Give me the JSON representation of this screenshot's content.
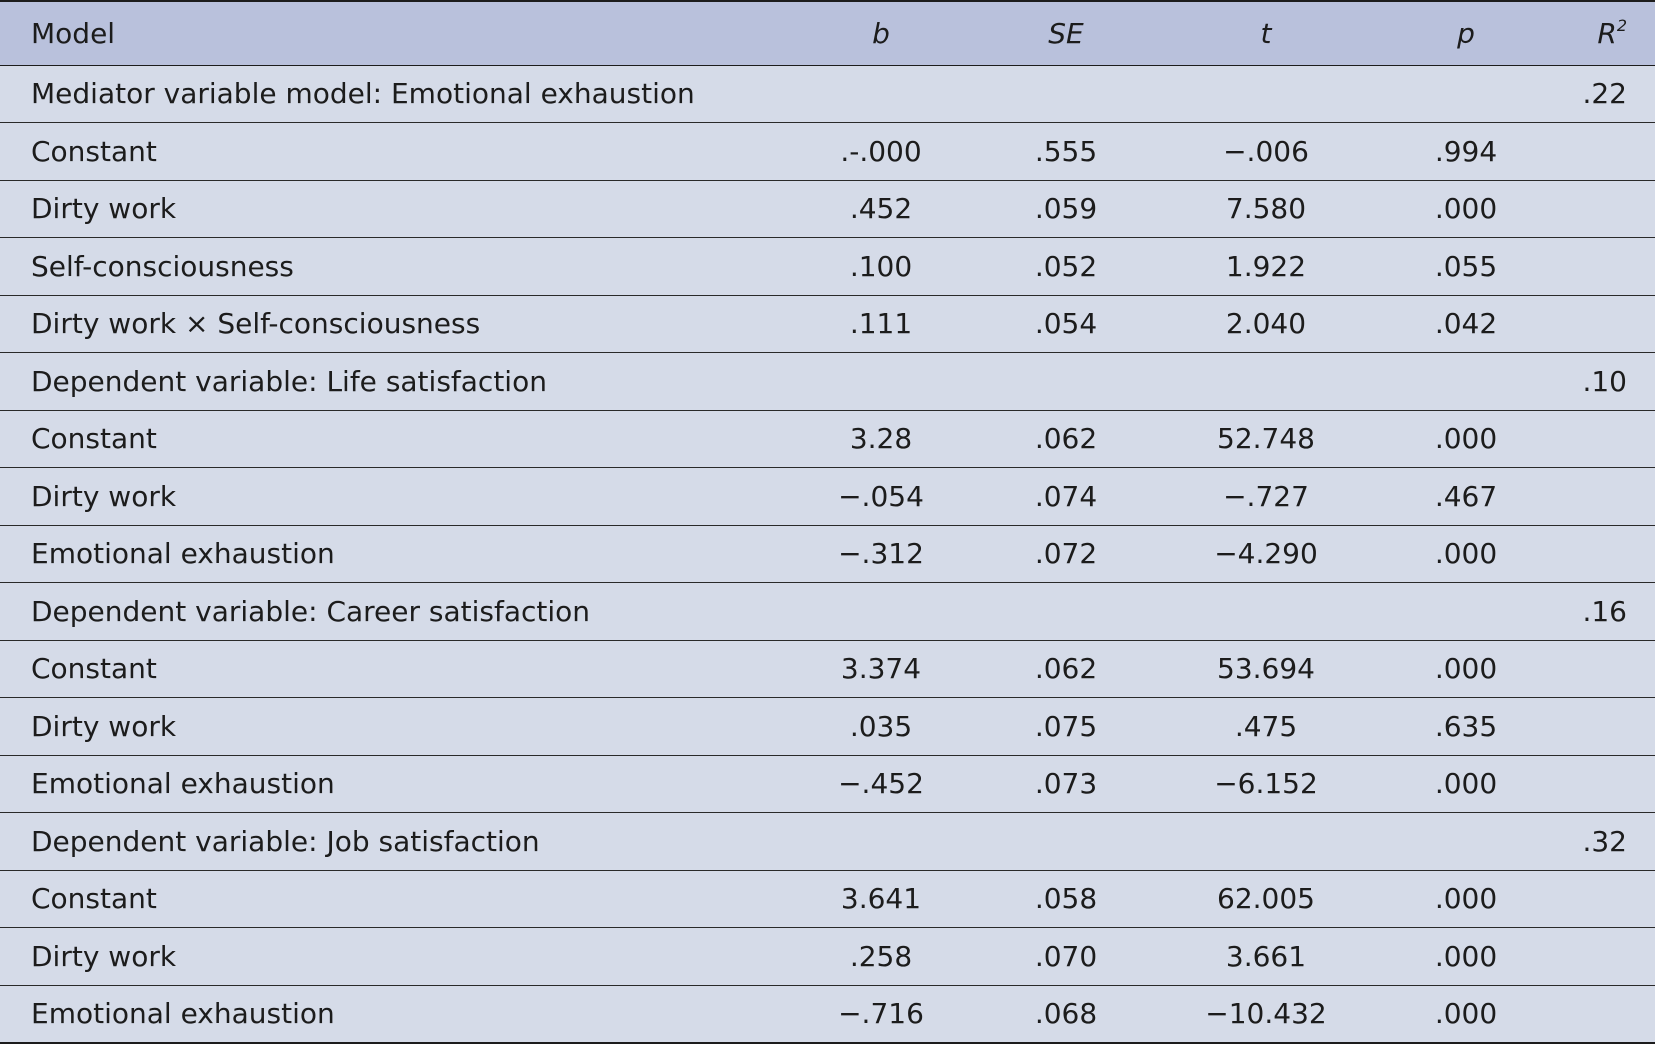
{
  "header": {
    "model": "Model",
    "b": "b",
    "se": "SE",
    "t": "t",
    "p": "p",
    "r2_base": "R",
    "r2_sup": "2"
  },
  "rows": [
    {
      "model": "Mediator variable model: Emotional exhaustion",
      "b": "",
      "se": "",
      "t": "",
      "p": "",
      "r2": ".22"
    },
    {
      "model": "Constant",
      "b": ".-.000",
      "se": ".555",
      "t": "−.006",
      "p": ".994",
      "r2": ""
    },
    {
      "model": "Dirty work",
      "b": ".452",
      "se": ".059",
      "t": "7.580",
      "p": ".000",
      "r2": ""
    },
    {
      "model": "Self-consciousness",
      "b": ".100",
      "se": ".052",
      "t": "1.922",
      "p": ".055",
      "r2": ""
    },
    {
      "model": "Dirty work × Self-consciousness",
      "b": ".111",
      "se": ".054",
      "t": "2.040",
      "p": ".042",
      "r2": ""
    },
    {
      "model": "Dependent variable: Life satisfaction",
      "b": "",
      "se": "",
      "t": "",
      "p": "",
      "r2": ".10"
    },
    {
      "model": "Constant",
      "b": "3.28",
      "se": ".062",
      "t": "52.748",
      "p": ".000",
      "r2": ""
    },
    {
      "model": "Dirty work",
      "b": "−.054",
      "se": ".074",
      "t": "−.727",
      "p": ".467",
      "r2": ""
    },
    {
      "model": "Emotional exhaustion",
      "b": "−.312",
      "se": ".072",
      "t": "−4.290",
      "p": ".000",
      "r2": ""
    },
    {
      "model": "Dependent variable: Career satisfaction",
      "b": "",
      "se": "",
      "t": "",
      "p": "",
      "r2": ".16"
    },
    {
      "model": "Constant",
      "b": "3.374",
      "se": ".062",
      "t": "53.694",
      "p": ".000",
      "r2": ""
    },
    {
      "model": "Dirty work",
      "b": ".035",
      "se": ".075",
      "t": ".475",
      "p": ".635",
      "r2": ""
    },
    {
      "model": "Emotional exhaustion",
      "b": "−.452",
      "se": ".073",
      "t": "−6.152",
      "p": ".000",
      "r2": ""
    },
    {
      "model": "Dependent variable: Job satisfaction",
      "b": "",
      "se": "",
      "t": "",
      "p": "",
      "r2": ".32"
    },
    {
      "model": "Constant",
      "b": "3.641",
      "se": ".058",
      "t": "62.005",
      "p": ".000",
      "r2": ""
    },
    {
      "model": "Dirty work",
      "b": ".258",
      "se": ".070",
      "t": "3.661",
      "p": ".000",
      "r2": ""
    },
    {
      "model": "Emotional exhaustion",
      "b": "−.716",
      "se": ".068",
      "t": "−10.432",
      "p": ".000",
      "r2": ""
    }
  ]
}
